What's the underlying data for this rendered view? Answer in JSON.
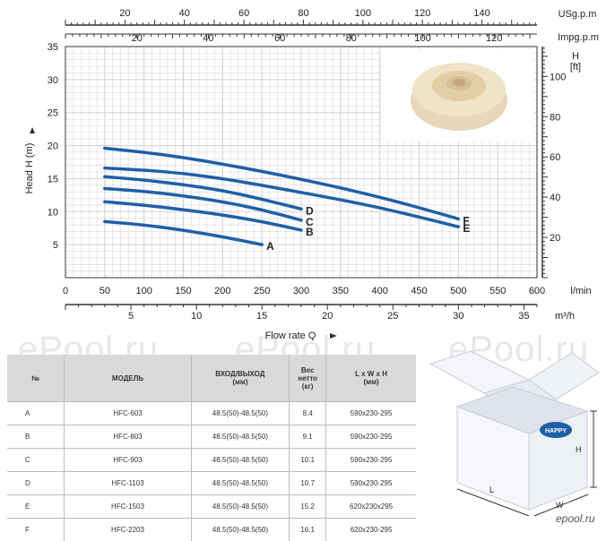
{
  "chart_data": {
    "type": "line",
    "top_axis_1": {
      "label": "USg.p.m",
      "ticks": [
        20,
        40,
        60,
        80,
        100,
        120,
        140
      ]
    },
    "top_axis_2": {
      "label": "Impg.p.m",
      "ticks": [
        20,
        40,
        60,
        80,
        100,
        120
      ]
    },
    "left_axis": {
      "label": "Head H (m)",
      "ticks": [
        5,
        10,
        15,
        20,
        25,
        30,
        35
      ],
      "range": [
        0,
        35
      ]
    },
    "right_axis": {
      "label_line1": "H",
      "label_line2": "[ft]",
      "ticks": [
        20,
        40,
        60,
        80,
        100
      ]
    },
    "x_axis_lmin": {
      "label": "l/min",
      "ticks": [
        0,
        50,
        100,
        150,
        200,
        250,
        300,
        350,
        400,
        450,
        500,
        550,
        600
      ],
      "range": [
        0,
        600
      ]
    },
    "x_axis_m3h": {
      "label": "m³/h",
      "ticks": [
        5,
        10,
        15,
        20,
        25,
        30,
        35
      ]
    },
    "xlabel": "Flow rate Q",
    "grid": true,
    "series": [
      {
        "name": "A",
        "x": [
          50,
          100,
          150,
          200,
          250
        ],
        "y": [
          8.5,
          8.0,
          7.2,
          6.2,
          5.0
        ]
      },
      {
        "name": "B",
        "x": [
          50,
          100,
          150,
          200,
          250,
          300
        ],
        "y": [
          11.5,
          11.0,
          10.3,
          9.5,
          8.5,
          7.2
        ]
      },
      {
        "name": "C",
        "x": [
          50,
          100,
          150,
          200,
          250,
          300
        ],
        "y": [
          13.5,
          13.1,
          12.4,
          11.5,
          10.3,
          8.7
        ]
      },
      {
        "name": "D",
        "x": [
          50,
          100,
          150,
          200,
          250,
          300
        ],
        "y": [
          15.3,
          14.8,
          14.1,
          13.2,
          11.9,
          10.4
        ]
      },
      {
        "name": "E",
        "x": [
          50,
          100,
          150,
          200,
          250,
          300,
          350,
          400,
          450,
          500
        ],
        "y": [
          16.6,
          16.3,
          15.8,
          15.0,
          14.0,
          12.9,
          11.8,
          10.6,
          9.2,
          7.7
        ]
      },
      {
        "name": "F",
        "x": [
          50,
          100,
          150,
          200,
          250,
          300,
          350,
          400,
          450,
          500
        ],
        "y": [
          19.6,
          19.0,
          18.2,
          17.2,
          16.1,
          14.9,
          13.6,
          12.2,
          10.6,
          8.9
        ]
      }
    ]
  },
  "colors": {
    "curve": "#1f5fa8",
    "grid": "#cfcfcf",
    "axis": "#333333"
  },
  "table": {
    "headers": [
      "№",
      "МОДЕЛЬ",
      "ВХОД/ВЫХОД\n(мм)",
      "Вес\nнетто\n(кг)",
      "L x W x H\n(мм)"
    ],
    "rows": [
      [
        "A",
        "HFC-603",
        "48.5(50)-48.5(50)",
        "8.4",
        "590x230-295"
      ],
      [
        "B",
        "HFC-803",
        "48.5(50)-48.5(50)",
        "9.1",
        "590x230-295"
      ],
      [
        "C",
        "HFC-903",
        "48.5(50)-48.5(50)",
        "10.1",
        "590x230-295"
      ],
      [
        "D",
        "HFC-1103",
        "48.5(50)-48.5(50)",
        "10.7",
        "590x230-295"
      ],
      [
        "E",
        "HFC-1503",
        "48.5(50)-48.5(50)",
        "15.2",
        "620x230x295"
      ],
      [
        "F",
        "HFC-2203",
        "48.5(50)-48.5(50)",
        "16.1",
        "620x230-295"
      ]
    ]
  },
  "box": {
    "brand": "HAPPY",
    "dim_h": "H",
    "dim_l": "L",
    "dim_w": "W"
  },
  "watermark": "ePool.ru",
  "logo": "epool.ru"
}
